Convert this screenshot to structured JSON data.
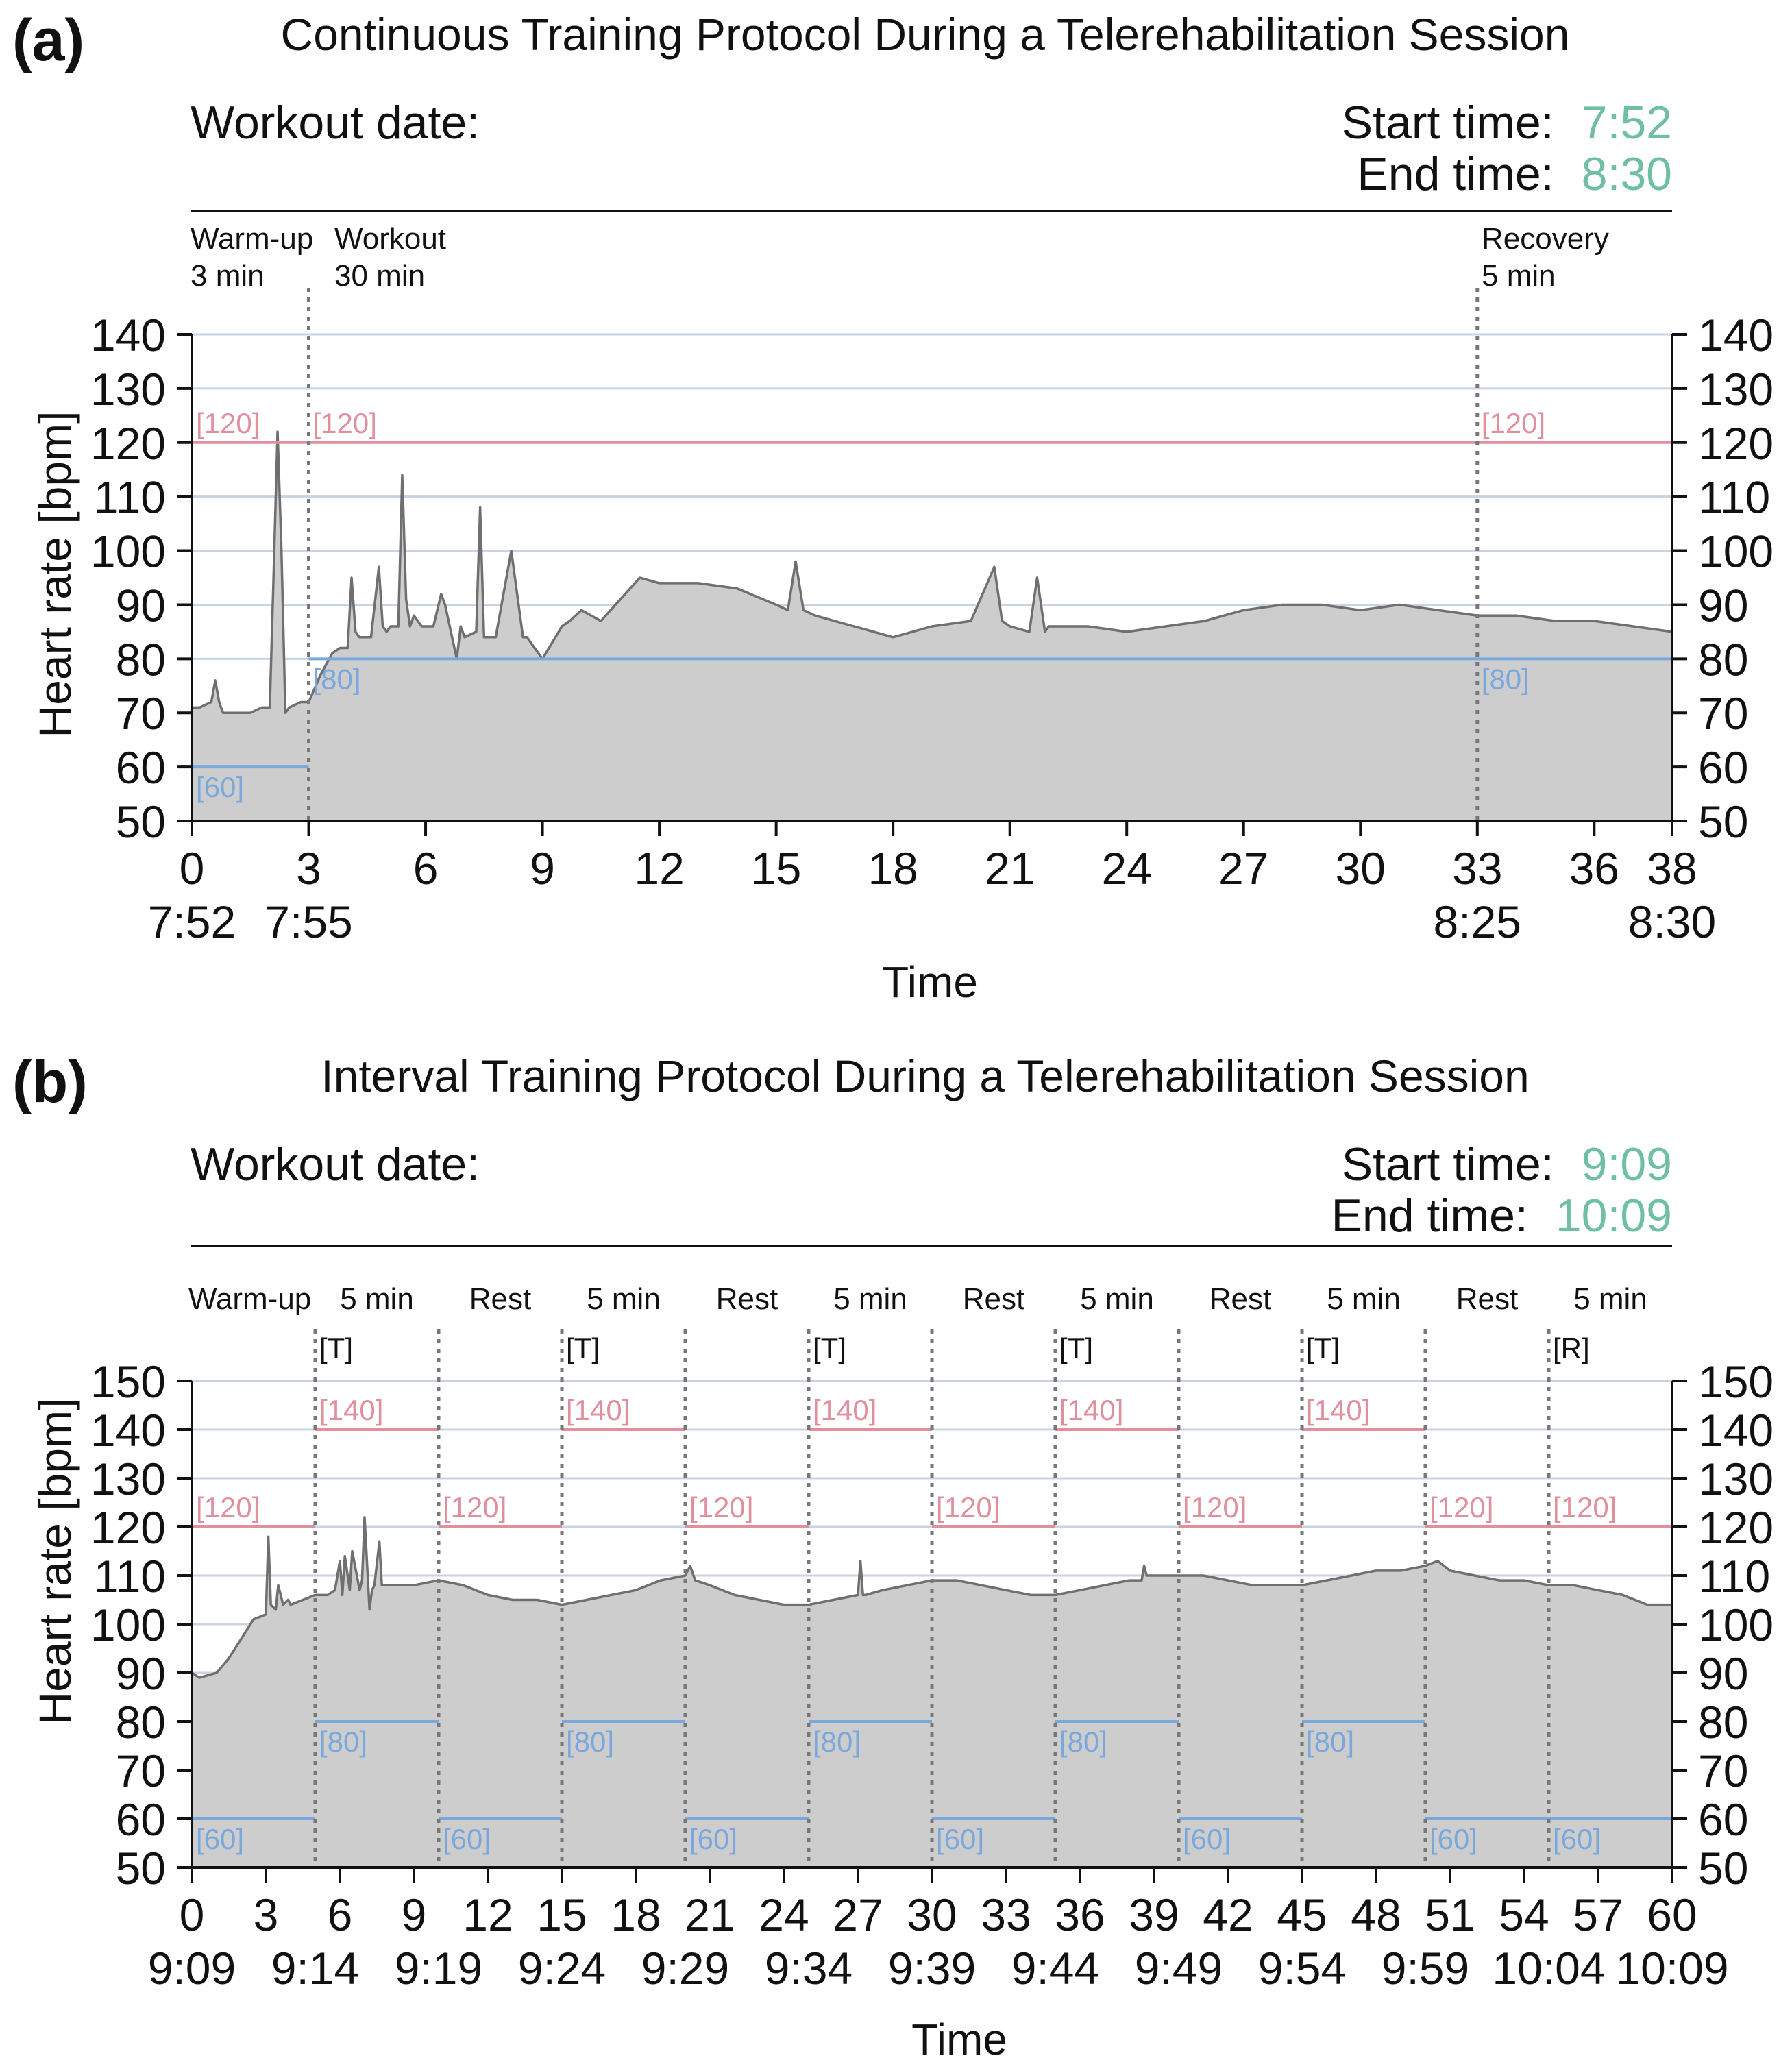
{
  "figure": {
    "panels": [
      {
        "letter": "(a)",
        "title": "Continuous Training Protocol During a Telerehabilitation Session",
        "workout_date_label": "Workout date:",
        "start_label": "Start time:",
        "start_value": "7:52",
        "end_label": "End time:",
        "end_value": "8:30",
        "phases": [
          {
            "name": "Warm-up",
            "duration": "3 min"
          },
          {
            "name": "Workout",
            "duration": "30 min"
          },
          {
            "name": "Recovery",
            "duration": "5 min"
          }
        ],
        "ylabel": "Heart rate [bpm]",
        "xlabel": "Time"
      },
      {
        "letter": "(b)",
        "title": "Interval Training Protocol During a Telerehabilitation Session",
        "workout_date_label": "Workout date:",
        "start_label": "Start time:",
        "start_value": "9:09",
        "end_label": "End time:",
        "end_value": "10:09",
        "phase_labels": [
          "Warm-up",
          "5 min",
          "Rest",
          "5 min",
          "Rest",
          "5 min",
          "Rest",
          "5 min",
          "Rest",
          "5 min",
          "Rest",
          "5 min"
        ],
        "segment_markers": [
          "[T]",
          "[T]",
          "[T]",
          "[T]",
          "[T]",
          "[R]"
        ],
        "ylabel": "Heart rate [bpm]",
        "xlabel": "Time"
      }
    ]
  },
  "colors": {
    "upper_limit": "#e0909c",
    "lower_limit": "#7aa8dd",
    "fill": "#cdcdcd",
    "line": "#6f6f6f",
    "grid": "#c9d3e3",
    "accent_time": "#6fbfa3"
  },
  "chart_data": [
    {
      "type": "area",
      "title": "Continuous Training Protocol During a Telerehabilitation Session",
      "xlabel": "Time",
      "ylabel": "Heart rate [bpm]",
      "xlim": [
        0,
        38
      ],
      "ylim": [
        50,
        140
      ],
      "yticks": [
        50,
        60,
        70,
        80,
        90,
        100,
        110,
        120,
        130,
        140
      ],
      "xticks": [
        0,
        3,
        6,
        9,
        12,
        15,
        18,
        21,
        24,
        27,
        30,
        33,
        36,
        38
      ],
      "xtick_labels": [
        "0",
        "3",
        "6",
        "9",
        "12",
        "15",
        "18",
        "21",
        "24",
        "27",
        "30",
        "33",
        "36",
        "38"
      ],
      "clock_ticks": [
        {
          "x": 0,
          "label": "7:52"
        },
        {
          "x": 3,
          "label": "7:55"
        },
        {
          "x": 33,
          "label": "8:25"
        },
        {
          "x": 38,
          "label": "8:30"
        }
      ],
      "phase_boundaries": [
        3,
        33
      ],
      "limits": [
        {
          "kind": "upper",
          "value": 120,
          "x_start": 0,
          "x_end": 3,
          "label": "[120]"
        },
        {
          "kind": "upper",
          "value": 120,
          "x_start": 3,
          "x_end": 33,
          "label": "[120]"
        },
        {
          "kind": "upper",
          "value": 120,
          "x_start": 33,
          "x_end": 38,
          "label": "[120]"
        },
        {
          "kind": "lower",
          "value": 60,
          "x_start": 0,
          "x_end": 3,
          "label": "[60]"
        },
        {
          "kind": "lower",
          "value": 80,
          "x_start": 3,
          "x_end": 33,
          "label": "[80]"
        },
        {
          "kind": "lower",
          "value": 80,
          "x_start": 33,
          "x_end": 38,
          "label": "[80]"
        }
      ],
      "series": [
        {
          "name": "Heart rate",
          "x": [
            0,
            0.2,
            0.5,
            0.6,
            0.7,
            0.8,
            1.0,
            1.5,
            1.8,
            2.0,
            2.1,
            2.2,
            2.3,
            2.4,
            2.5,
            2.8,
            3.0,
            3.3,
            3.6,
            3.8,
            4.0,
            4.1,
            4.2,
            4.3,
            4.6,
            4.8,
            4.9,
            5.0,
            5.1,
            5.3,
            5.4,
            5.5,
            5.6,
            5.7,
            5.9,
            6.2,
            6.4,
            6.5,
            6.8,
            6.9,
            7.0,
            7.3,
            7.4,
            7.5,
            7.6,
            7.8,
            8.2,
            8.5,
            8.6,
            8.7,
            9.0,
            9.5,
            9.7,
            10,
            10.5,
            11,
            11.5,
            12,
            13,
            14,
            15,
            15.3,
            15.5,
            15.7,
            16,
            17,
            18,
            19,
            20,
            20.6,
            20.8,
            21,
            21.5,
            21.7,
            21.9,
            22,
            23,
            24,
            25,
            26,
            27,
            28,
            29,
            30,
            31,
            32,
            33,
            34,
            35,
            36,
            37,
            38
          ],
          "values": [
            71,
            71,
            72,
            76,
            72,
            70,
            70,
            70,
            71,
            71,
            96,
            122,
            100,
            70,
            71,
            72,
            72,
            77,
            81,
            82,
            82,
            95,
            85,
            84,
            84,
            97,
            86,
            85,
            86,
            86,
            114,
            91,
            86,
            88,
            86,
            86,
            92,
            90,
            80,
            86,
            84,
            85,
            108,
            84,
            84,
            84,
            100,
            84,
            84,
            83,
            80,
            86,
            87,
            89,
            87,
            91,
            95,
            94,
            94,
            93,
            90,
            89,
            98,
            89,
            88,
            86,
            84,
            86,
            87,
            97,
            87,
            86,
            85,
            95,
            85,
            86,
            86,
            85,
            86,
            87,
            89,
            90,
            90,
            89,
            90,
            89,
            88,
            88,
            87,
            87,
            86,
            85
          ]
        }
      ]
    },
    {
      "type": "area",
      "title": "Interval Training Protocol During a Telerehabilitation Session",
      "xlabel": "Time",
      "ylabel": "Heart rate [bpm]",
      "xlim": [
        0,
        60
      ],
      "ylim": [
        50,
        150
      ],
      "yticks": [
        50,
        60,
        70,
        80,
        90,
        100,
        110,
        120,
        130,
        140,
        150
      ],
      "xticks": [
        0,
        3,
        6,
        9,
        12,
        15,
        18,
        21,
        24,
        27,
        30,
        33,
        36,
        39,
        42,
        45,
        48,
        51,
        54,
        57,
        60
      ],
      "xtick_labels": [
        "0",
        "3",
        "6",
        "9",
        "12",
        "15",
        "18",
        "21",
        "24",
        "27",
        "30",
        "33",
        "36",
        "39",
        "42",
        "45",
        "48",
        "51",
        "54",
        "57",
        "60"
      ],
      "clock_ticks": [
        {
          "x": 0,
          "label": "9:09"
        },
        {
          "x": 5,
          "label": "9:14"
        },
        {
          "x": 10,
          "label": "9:19"
        },
        {
          "x": 15,
          "label": "9:24"
        },
        {
          "x": 20,
          "label": "9:29"
        },
        {
          "x": 25,
          "label": "9:34"
        },
        {
          "x": 30,
          "label": "9:39"
        },
        {
          "x": 35,
          "label": "9:44"
        },
        {
          "x": 40,
          "label": "9:49"
        },
        {
          "x": 45,
          "label": "9:54"
        },
        {
          "x": 50,
          "label": "9:59"
        },
        {
          "x": 55,
          "label": "10:04"
        },
        {
          "x": 60,
          "label": "10:09"
        }
      ],
      "phase_boundaries": [
        5,
        10,
        15,
        20,
        25,
        30,
        35,
        40,
        45,
        50,
        55
      ],
      "limits": [
        {
          "kind": "upper",
          "value": 120,
          "x_start": 0,
          "x_end": 5,
          "label": "[120]"
        },
        {
          "kind": "upper",
          "value": 140,
          "x_start": 5,
          "x_end": 10,
          "label": "[140]"
        },
        {
          "kind": "upper",
          "value": 120,
          "x_start": 10,
          "x_end": 15,
          "label": "[120]"
        },
        {
          "kind": "upper",
          "value": 140,
          "x_start": 15,
          "x_end": 20,
          "label": "[140]"
        },
        {
          "kind": "upper",
          "value": 120,
          "x_start": 20,
          "x_end": 25,
          "label": "[120]"
        },
        {
          "kind": "upper",
          "value": 140,
          "x_start": 25,
          "x_end": 30,
          "label": "[140]"
        },
        {
          "kind": "upper",
          "value": 120,
          "x_start": 30,
          "x_end": 35,
          "label": "[120]"
        },
        {
          "kind": "upper",
          "value": 140,
          "x_start": 35,
          "x_end": 40,
          "label": "[140]"
        },
        {
          "kind": "upper",
          "value": 120,
          "x_start": 40,
          "x_end": 45,
          "label": "[120]"
        },
        {
          "kind": "upper",
          "value": 140,
          "x_start": 45,
          "x_end": 50,
          "label": "[140]"
        },
        {
          "kind": "upper",
          "value": 120,
          "x_start": 50,
          "x_end": 55,
          "label": "[120]"
        },
        {
          "kind": "upper",
          "value": 120,
          "x_start": 55,
          "x_end": 60,
          "label": "[120]"
        },
        {
          "kind": "lower",
          "value": 60,
          "x_start": 0,
          "x_end": 5,
          "label": "[60]"
        },
        {
          "kind": "lower",
          "value": 80,
          "x_start": 5,
          "x_end": 10,
          "label": "[80]"
        },
        {
          "kind": "lower",
          "value": 60,
          "x_start": 10,
          "x_end": 15,
          "label": "[60]"
        },
        {
          "kind": "lower",
          "value": 80,
          "x_start": 15,
          "x_end": 20,
          "label": "[80]"
        },
        {
          "kind": "lower",
          "value": 60,
          "x_start": 20,
          "x_end": 25,
          "label": "[60]"
        },
        {
          "kind": "lower",
          "value": 80,
          "x_start": 25,
          "x_end": 30,
          "label": "[80]"
        },
        {
          "kind": "lower",
          "value": 60,
          "x_start": 30,
          "x_end": 35,
          "label": "[60]"
        },
        {
          "kind": "lower",
          "value": 80,
          "x_start": 35,
          "x_end": 40,
          "label": "[80]"
        },
        {
          "kind": "lower",
          "value": 60,
          "x_start": 40,
          "x_end": 45,
          "label": "[60]"
        },
        {
          "kind": "lower",
          "value": 80,
          "x_start": 45,
          "x_end": 50,
          "label": "[80]"
        },
        {
          "kind": "lower",
          "value": 60,
          "x_start": 50,
          "x_end": 55,
          "label": "[60]"
        },
        {
          "kind": "lower",
          "value": 60,
          "x_start": 55,
          "x_end": 60,
          "label": "[60]"
        }
      ],
      "series": [
        {
          "name": "Heart rate",
          "x": [
            0,
            0.3,
            1,
            1.5,
            2,
            2.5,
            3,
            3.1,
            3.2,
            3.4,
            3.5,
            3.7,
            3.9,
            4,
            4.5,
            5,
            5.5,
            5.8,
            6,
            6.1,
            6.2,
            6.4,
            6.5,
            6.8,
            6.9,
            7.0,
            7.2,
            7.3,
            7.4,
            7.6,
            7.7,
            7.8,
            8,
            9,
            10,
            11,
            12,
            13,
            14,
            15,
            16,
            17,
            18,
            19,
            20,
            20.2,
            20.4,
            21,
            22,
            23,
            24,
            25,
            26,
            27,
            27.1,
            27.2,
            27.3,
            28,
            29,
            30,
            31,
            32,
            33,
            34,
            35,
            36,
            37,
            38,
            38.5,
            38.6,
            38.7,
            39,
            40,
            41,
            42,
            43,
            44,
            45,
            46,
            47,
            48,
            49,
            50,
            50.5,
            51,
            52,
            53,
            54,
            55,
            56,
            57,
            58,
            59,
            60
          ],
          "values": [
            90,
            89,
            90,
            93,
            97,
            101,
            102,
            118,
            104,
            103,
            108,
            104,
            105,
            104,
            105,
            106,
            106,
            107,
            113,
            106,
            114,
            107,
            115,
            107,
            109,
            122,
            103,
            107,
            108,
            117,
            108,
            108,
            108,
            108,
            109,
            108,
            106,
            105,
            105,
            104,
            105,
            106,
            107,
            109,
            110,
            112,
            109,
            108,
            106,
            105,
            104,
            104,
            105,
            106,
            113,
            106,
            106,
            107,
            108,
            109,
            109,
            108,
            107,
            106,
            106,
            107,
            108,
            109,
            109,
            112,
            110,
            110,
            110,
            110,
            109,
            108,
            108,
            108,
            109,
            110,
            111,
            111,
            112,
            113,
            111,
            110,
            109,
            109,
            108,
            108,
            107,
            106,
            104,
            104
          ]
        }
      ]
    }
  ]
}
